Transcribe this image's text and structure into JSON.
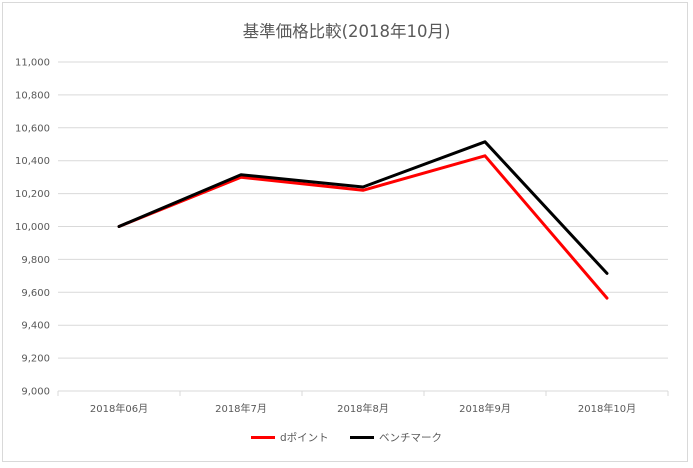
{
  "chart_data": {
    "type": "line",
    "title": "基準価格比較(2018年10月)",
    "categories": [
      "2018年06月",
      "2018年7月",
      "2018年8月",
      "2018年9月",
      "2018年10月"
    ],
    "series": [
      {
        "name": "dポイント",
        "color": "#ff0000",
        "values": [
          10000,
          10300,
          10220,
          10430,
          9565
        ]
      },
      {
        "name": "ベンチマーク",
        "color": "#000000",
        "values": [
          10000,
          10315,
          10240,
          10515,
          9715
        ]
      }
    ],
    "ylim": [
      9000,
      11000
    ],
    "yticks": [
      "9,000",
      "9,200",
      "9,400",
      "9,600",
      "9,800",
      "10,000",
      "10,200",
      "10,400",
      "10,600",
      "10,800",
      "11,000"
    ],
    "grid": true,
    "legend": "bottom"
  }
}
